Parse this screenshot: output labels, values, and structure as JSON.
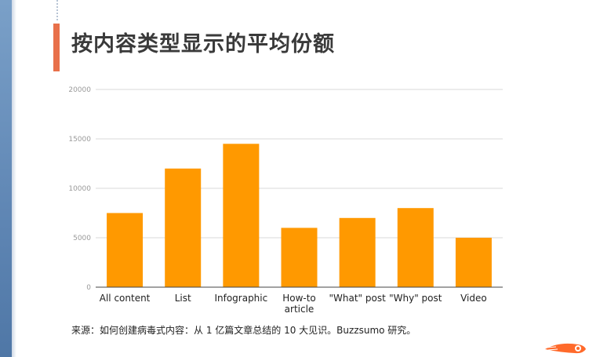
{
  "page": {
    "title": "按内容类型显示的平均份额",
    "caption": "来源：如何创建病毒式内容：从 1 亿篇文章总结的 10 大见识。Buzzsumo 研究。"
  },
  "colors": {
    "bar": "#ff9900",
    "accent": "#e8704a",
    "grid": "#d9d9d9",
    "axis": "#444444"
  },
  "chart_data": {
    "type": "bar",
    "categories": [
      "All content",
      "List",
      "Infographic",
      "How-to article",
      "\"What\" post",
      "\"Why\" post",
      "Video"
    ],
    "category_lines": [
      [
        "All content"
      ],
      [
        "List"
      ],
      [
        "Infographic"
      ],
      [
        "How-to",
        "article"
      ],
      [
        "\"What\" post"
      ],
      [
        "\"Why\" post"
      ],
      [
        "Video"
      ]
    ],
    "values": [
      7500,
      12000,
      14500,
      6000,
      7000,
      8000,
      5000
    ],
    "yticks": [
      0,
      5000,
      10000,
      15000,
      20000
    ],
    "ylim": [
      0,
      20000
    ],
    "grid": true,
    "legend": "none"
  }
}
